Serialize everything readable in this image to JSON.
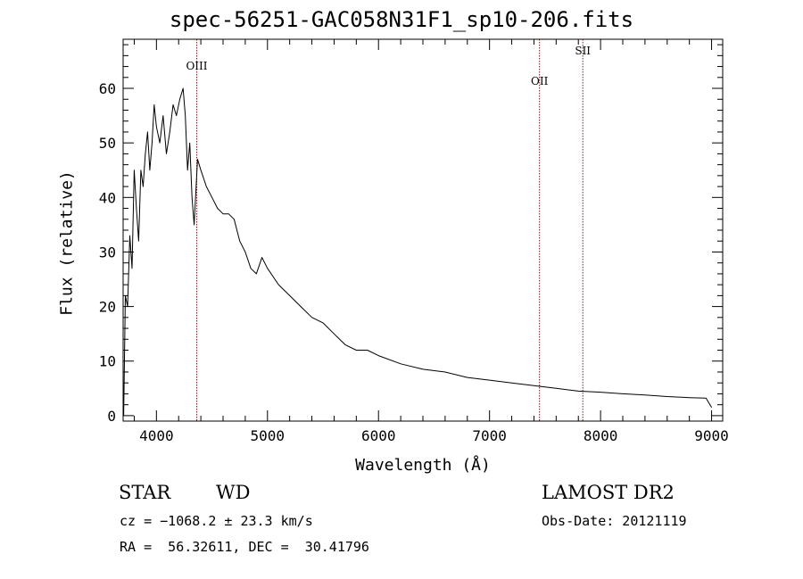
{
  "header": {
    "title": "spec-56251-GAC058N31F1_sp10-206.fits"
  },
  "footer": {
    "object_class": "STAR",
    "object_subclass": "WD",
    "survey": "LAMOST DR2",
    "redshift_line": "cz = −1068.2 ± 23.3 km/s",
    "obs_date_line": "Obs-Date: 20121119",
    "coords_line": "RA =  56.32611, DEC =  30.41796"
  },
  "colors": {
    "spectrum": "#000000",
    "line_marker": "#8b1a1a",
    "axes": "#000000",
    "background": "#ffffff"
  },
  "chart_data": {
    "type": "line",
    "title": "spec-56251-GAC058N31F1_sp10-206.fits",
    "xlabel": "Wavelength (Å)",
    "ylabel": "Flux (relative)",
    "xlim": [
      3700,
      9100
    ],
    "ylim": [
      -1,
      69
    ],
    "xticks": [
      4000,
      5000,
      6000,
      7000,
      8000,
      9000
    ],
    "yticks": [
      0,
      10,
      20,
      30,
      40,
      50,
      60
    ],
    "xtick_labels": [
      "4000",
      "5000",
      "6000",
      "7000",
      "8000",
      "9000"
    ],
    "ytick_labels": [
      "0",
      "10",
      "20",
      "30",
      "40",
      "50",
      "60"
    ],
    "grid": false,
    "emission_lines": [
      {
        "label": "OIII",
        "wavelength": 4363
      },
      {
        "label": "OII",
        "wavelength": 7450
      },
      {
        "label": "SII",
        "wavelength": 7840
      }
    ],
    "series": [
      {
        "x": [
          3705,
          3720,
          3740,
          3760,
          3780,
          3800,
          3820,
          3840,
          3860,
          3880,
          3900,
          3920,
          3940,
          3960,
          3980,
          4000,
          4030,
          4060,
          4090,
          4120,
          4150,
          4180,
          4210,
          4240,
          4260,
          4280,
          4300,
          4320,
          4340,
          4370,
          4400,
          4450,
          4500,
          4550,
          4600,
          4650,
          4700,
          4750,
          4800,
          4850,
          4900,
          4950,
          5000,
          5100,
          5200,
          5300,
          5400,
          5500,
          5600,
          5700,
          5800,
          5900,
          6000,
          6200,
          6400,
          6600,
          6800,
          7000,
          7200,
          7400,
          7600,
          7800,
          8000,
          8200,
          8400,
          8600,
          8800,
          8950,
          9000
        ],
        "y": [
          0,
          22,
          20,
          33,
          27,
          45,
          38,
          32,
          45,
          42,
          48,
          52,
          45,
          50,
          57,
          53,
          50,
          55,
          48,
          52,
          57,
          55,
          58,
          60,
          55,
          45,
          50,
          40,
          35,
          47,
          45,
          42,
          40,
          38,
          37,
          37,
          36,
          32,
          30,
          27,
          26,
          29,
          27,
          24,
          22,
          20,
          18,
          17,
          15,
          13,
          12,
          12,
          11,
          9.5,
          8.5,
          8,
          7,
          6.5,
          6,
          5.5,
          5,
          4.5,
          4.3,
          4,
          3.8,
          3.5,
          3.3,
          3.2,
          1.5
        ]
      }
    ]
  }
}
